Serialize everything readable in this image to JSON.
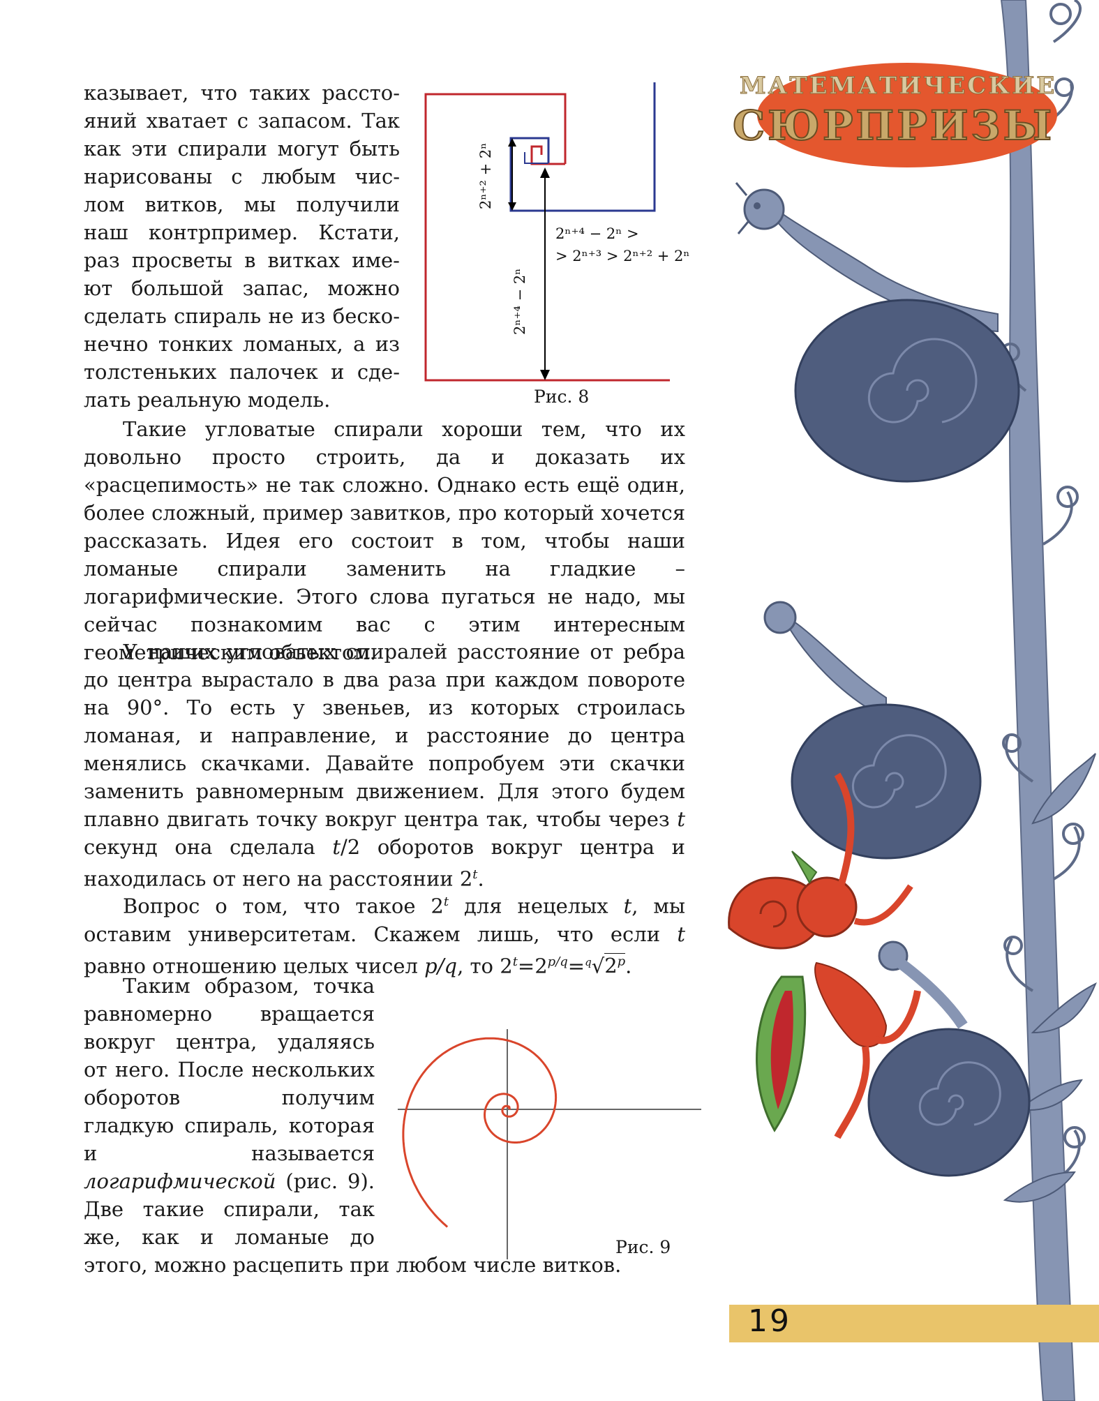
{
  "header": {
    "line1": "МАТЕМАТИЧЕСКИЕ",
    "line2": "СЮРПРИЗЫ"
  },
  "top_block_lines": [
    "казывает, что таких рассто-",
    "яний хватает с запасом. Так",
    "как эти спирали могут быть",
    "нарисованы с любым чис-",
    "лом витков, мы получили",
    "наш контрпример. Кстати,",
    "раз просветы в витках име-",
    "ют большой запас, можно",
    "сделать спираль не из беско-",
    "нечно тонких ломаных, а из",
    "толстеньких палочек и сде-",
    "лать реальную модель."
  ],
  "fig8": {
    "caption": "Рис. 8",
    "label_left_small": "2ⁿ⁺² + 2ⁿ",
    "label_left_big": "2ⁿ⁺⁴ − 2ⁿ",
    "label_right_line1": "2ⁿ⁺⁴ − 2ⁿ >",
    "label_right_line2": "> 2ⁿ⁺³ > 2ⁿ⁺² + 2ⁿ"
  },
  "paragraph2": "Такие угловатые спирали хороши тем, что их довольно просто строить, да и доказать их «расцепимость» не так сложно. Однако есть ещё один, более сложный, пример завитков, про который хочется рассказать. Идея его состоит в том, чтобы наши ломаные спирали заменить на гладкие – логарифмические. Этого слова пугаться не надо, мы сейчас познакомим вас с этим интересным геометрическим объектом.",
  "paragraph3": {
    "a": "У наших угловатых спиралей расстояние от ребра до центра вырастало в два раза при каждом повороте на 90°. То есть у звеньев, из которых строилась ломаная, и направление, и расстояние до центра менялись скачками. Давайте попробуем эти скачки заменить равномерным движением. Для этого будем плавно двигать точку вокруг центра так, чтобы через ",
    "t1": "t",
    "b": " секунд она сделала ",
    "t2": "t",
    "c": "/2 оборотов вокруг центра и находилась от него на расстоянии 2",
    "t3": "t",
    "d": "."
  },
  "paragraph4": {
    "a": "Вопрос о том, что такое 2",
    "t1": "t",
    "b": " для нецелых ",
    "t2": "t",
    "c": ", мы оставим университетам. Скажем лишь, что если ",
    "t3": "t",
    "d": " равно отношению целых чисел ",
    "pq": "p/q",
    "e": ", то 2",
    "t4": "t",
    "f": "=2",
    "pq2": "p/q",
    "g": "=",
    "root_index": "q",
    "root_symbol": "√",
    "root_base": "2",
    "root_exp": "p",
    "h": "."
  },
  "paragraph5": "Таким образом, точка равномерно вращается вокруг центра, удаляясь от него. После нескольких оборотов получим гладкую спираль, которая и называется ",
  "paragraph5_italic": "логарифмической",
  "paragraph5_end": " (рис. 9). Две такие спирали, так же, как и ломаные до этого, можно расцепить при любом числе витков.",
  "fig9": {
    "caption": "Рис. 9"
  },
  "page_number": "19",
  "colors": {
    "red": "#c0272d",
    "blue": "#2b3990",
    "spiral": "#d9452b",
    "header_orange": "#e4572e",
    "page_bar": "#e9c46a",
    "snail": "#5d6a87",
    "stalk": "#8795b3"
  }
}
